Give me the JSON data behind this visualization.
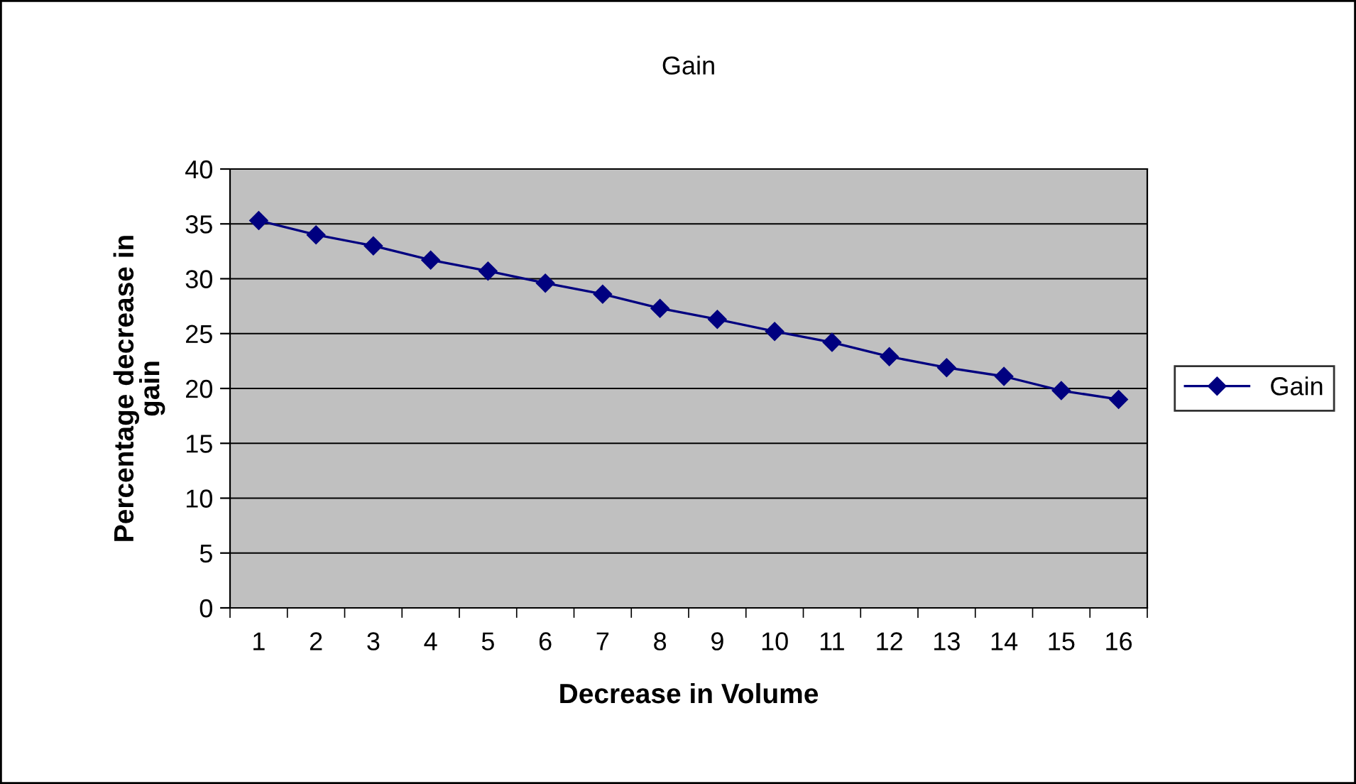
{
  "chart_data": {
    "type": "line",
    "title": "Gain",
    "xlabel": "Decrease in Volume",
    "ylabel": "Percentage decrease in\ngain",
    "categories": [
      "1",
      "2",
      "3",
      "4",
      "5",
      "6",
      "7",
      "8",
      "9",
      "10",
      "11",
      "12",
      "13",
      "14",
      "15",
      "16"
    ],
    "series": [
      {
        "name": "Gain",
        "color": "#000080",
        "values": [
          35.3,
          34.0,
          33.0,
          31.7,
          30.7,
          29.6,
          28.6,
          27.3,
          26.3,
          25.2,
          24.2,
          22.9,
          21.9,
          21.1,
          19.8,
          19.0
        ]
      }
    ],
    "ylim": [
      0,
      40
    ],
    "yticks": [
      0,
      5,
      10,
      15,
      20,
      25,
      30,
      35,
      40
    ],
    "grid": "y",
    "legend": "right",
    "marker": "diamond",
    "line_style": "solid"
  }
}
